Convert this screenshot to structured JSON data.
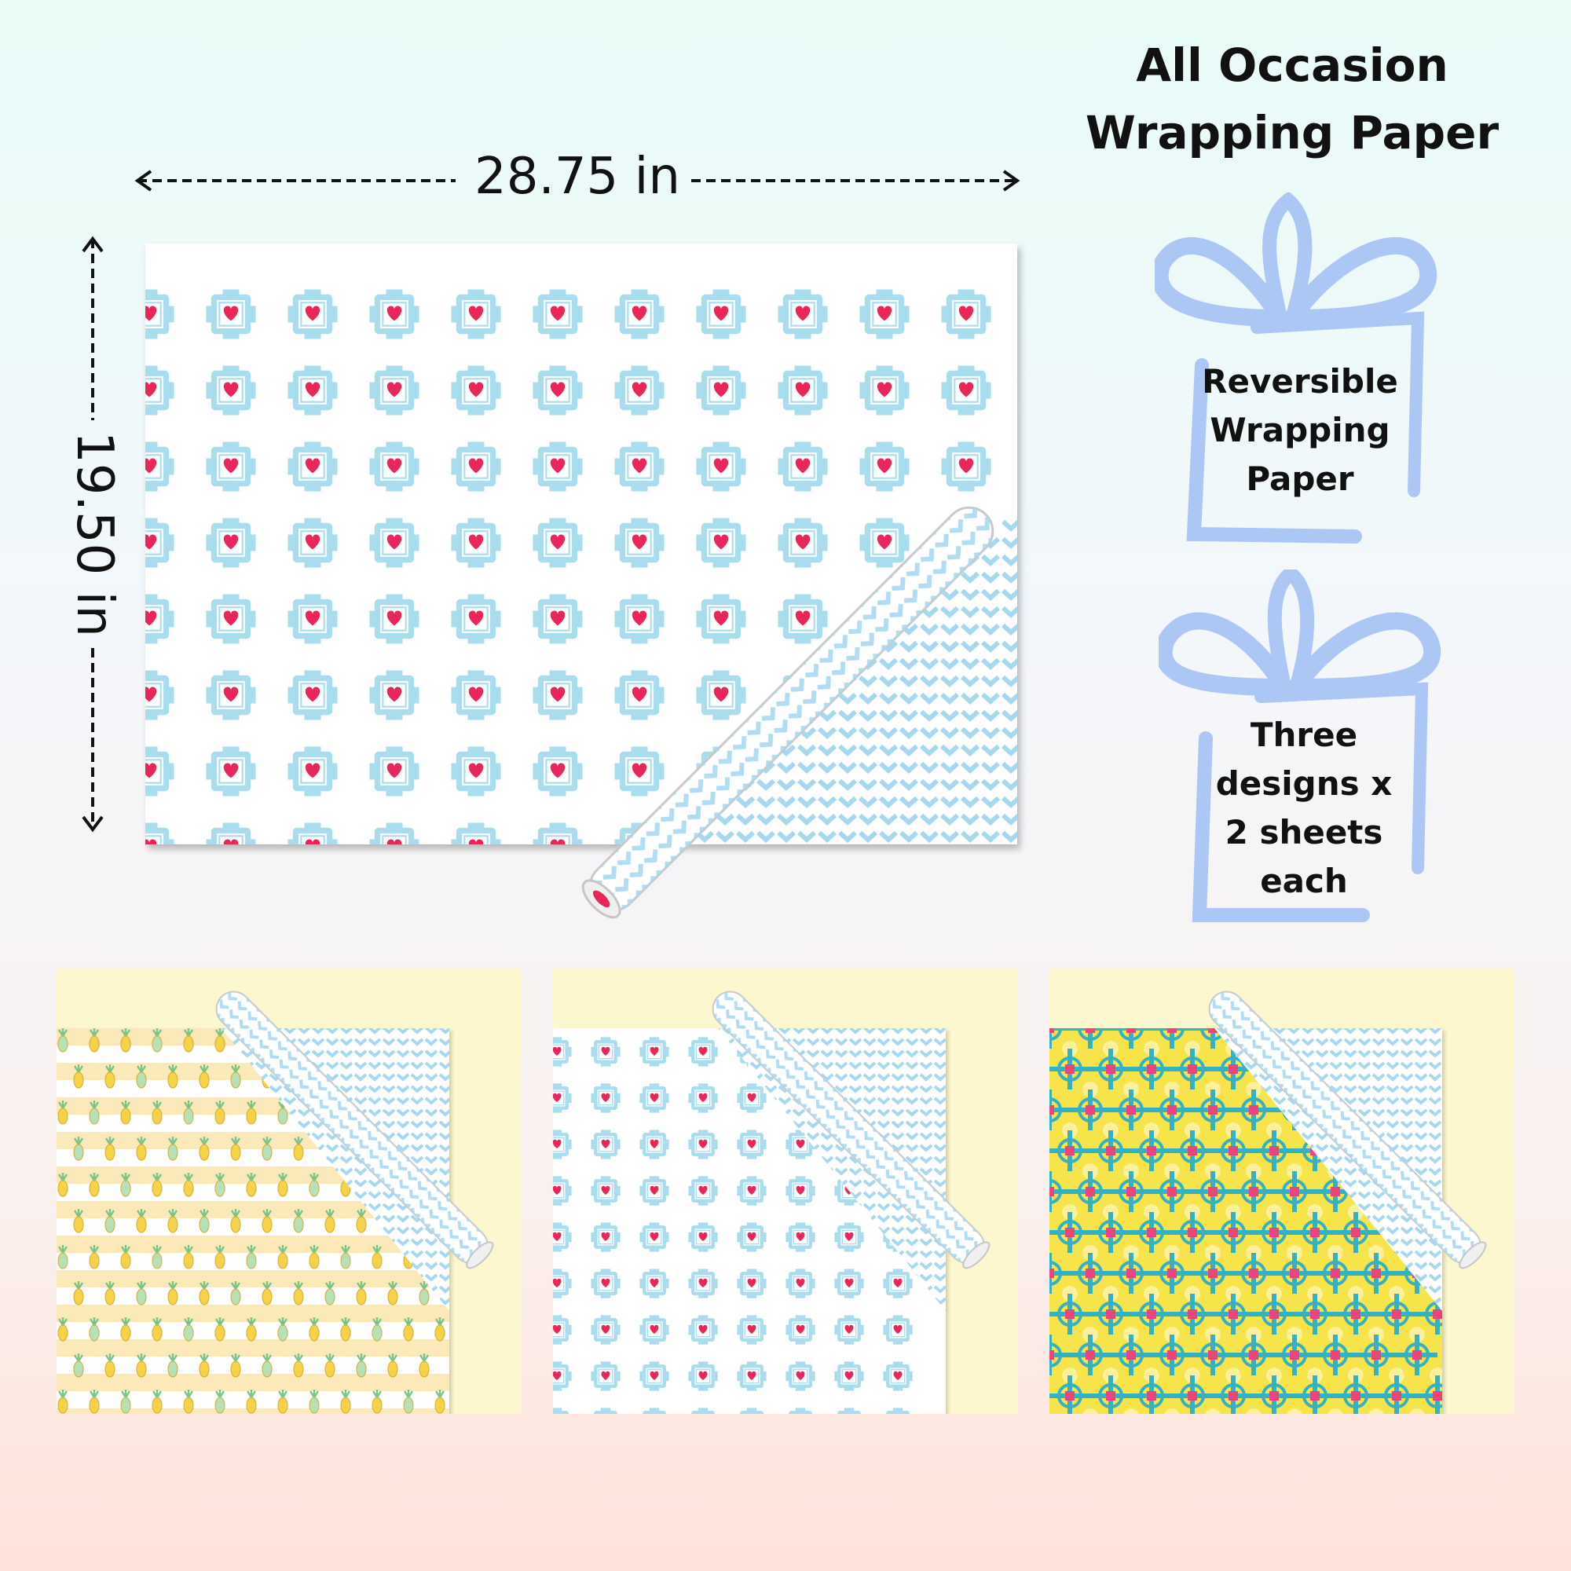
{
  "title": "All Occasion\nWrapping Paper",
  "dimensions": {
    "width_label": "28.75 in",
    "height_label": "19.50 in"
  },
  "features": [
    {
      "text": "Reversible\nWrapping\nPaper",
      "icon": "gift-ribbon-icon"
    },
    {
      "text": "Three\ndesigns x\n2 sheets\neach",
      "icon": "gift-ribbon-icon"
    }
  ],
  "designs": [
    {
      "name": "pineapple-stripe-pattern"
    },
    {
      "name": "heart-tile-pattern"
    },
    {
      "name": "geometric-teal-yellow-pattern"
    }
  ],
  "colors": {
    "ribbon": "#adc7f5",
    "tile_blue": "#a9dcec",
    "heart_red": "#e8265a",
    "chevron_blue": "#a8d8f0",
    "thumb_bg": "#fdf7cf",
    "pineapple_yellow": "#f4d34a",
    "geo_teal": "#35b1c4",
    "geo_yellow": "#f7e34a",
    "geo_pink": "#e8467a"
  }
}
